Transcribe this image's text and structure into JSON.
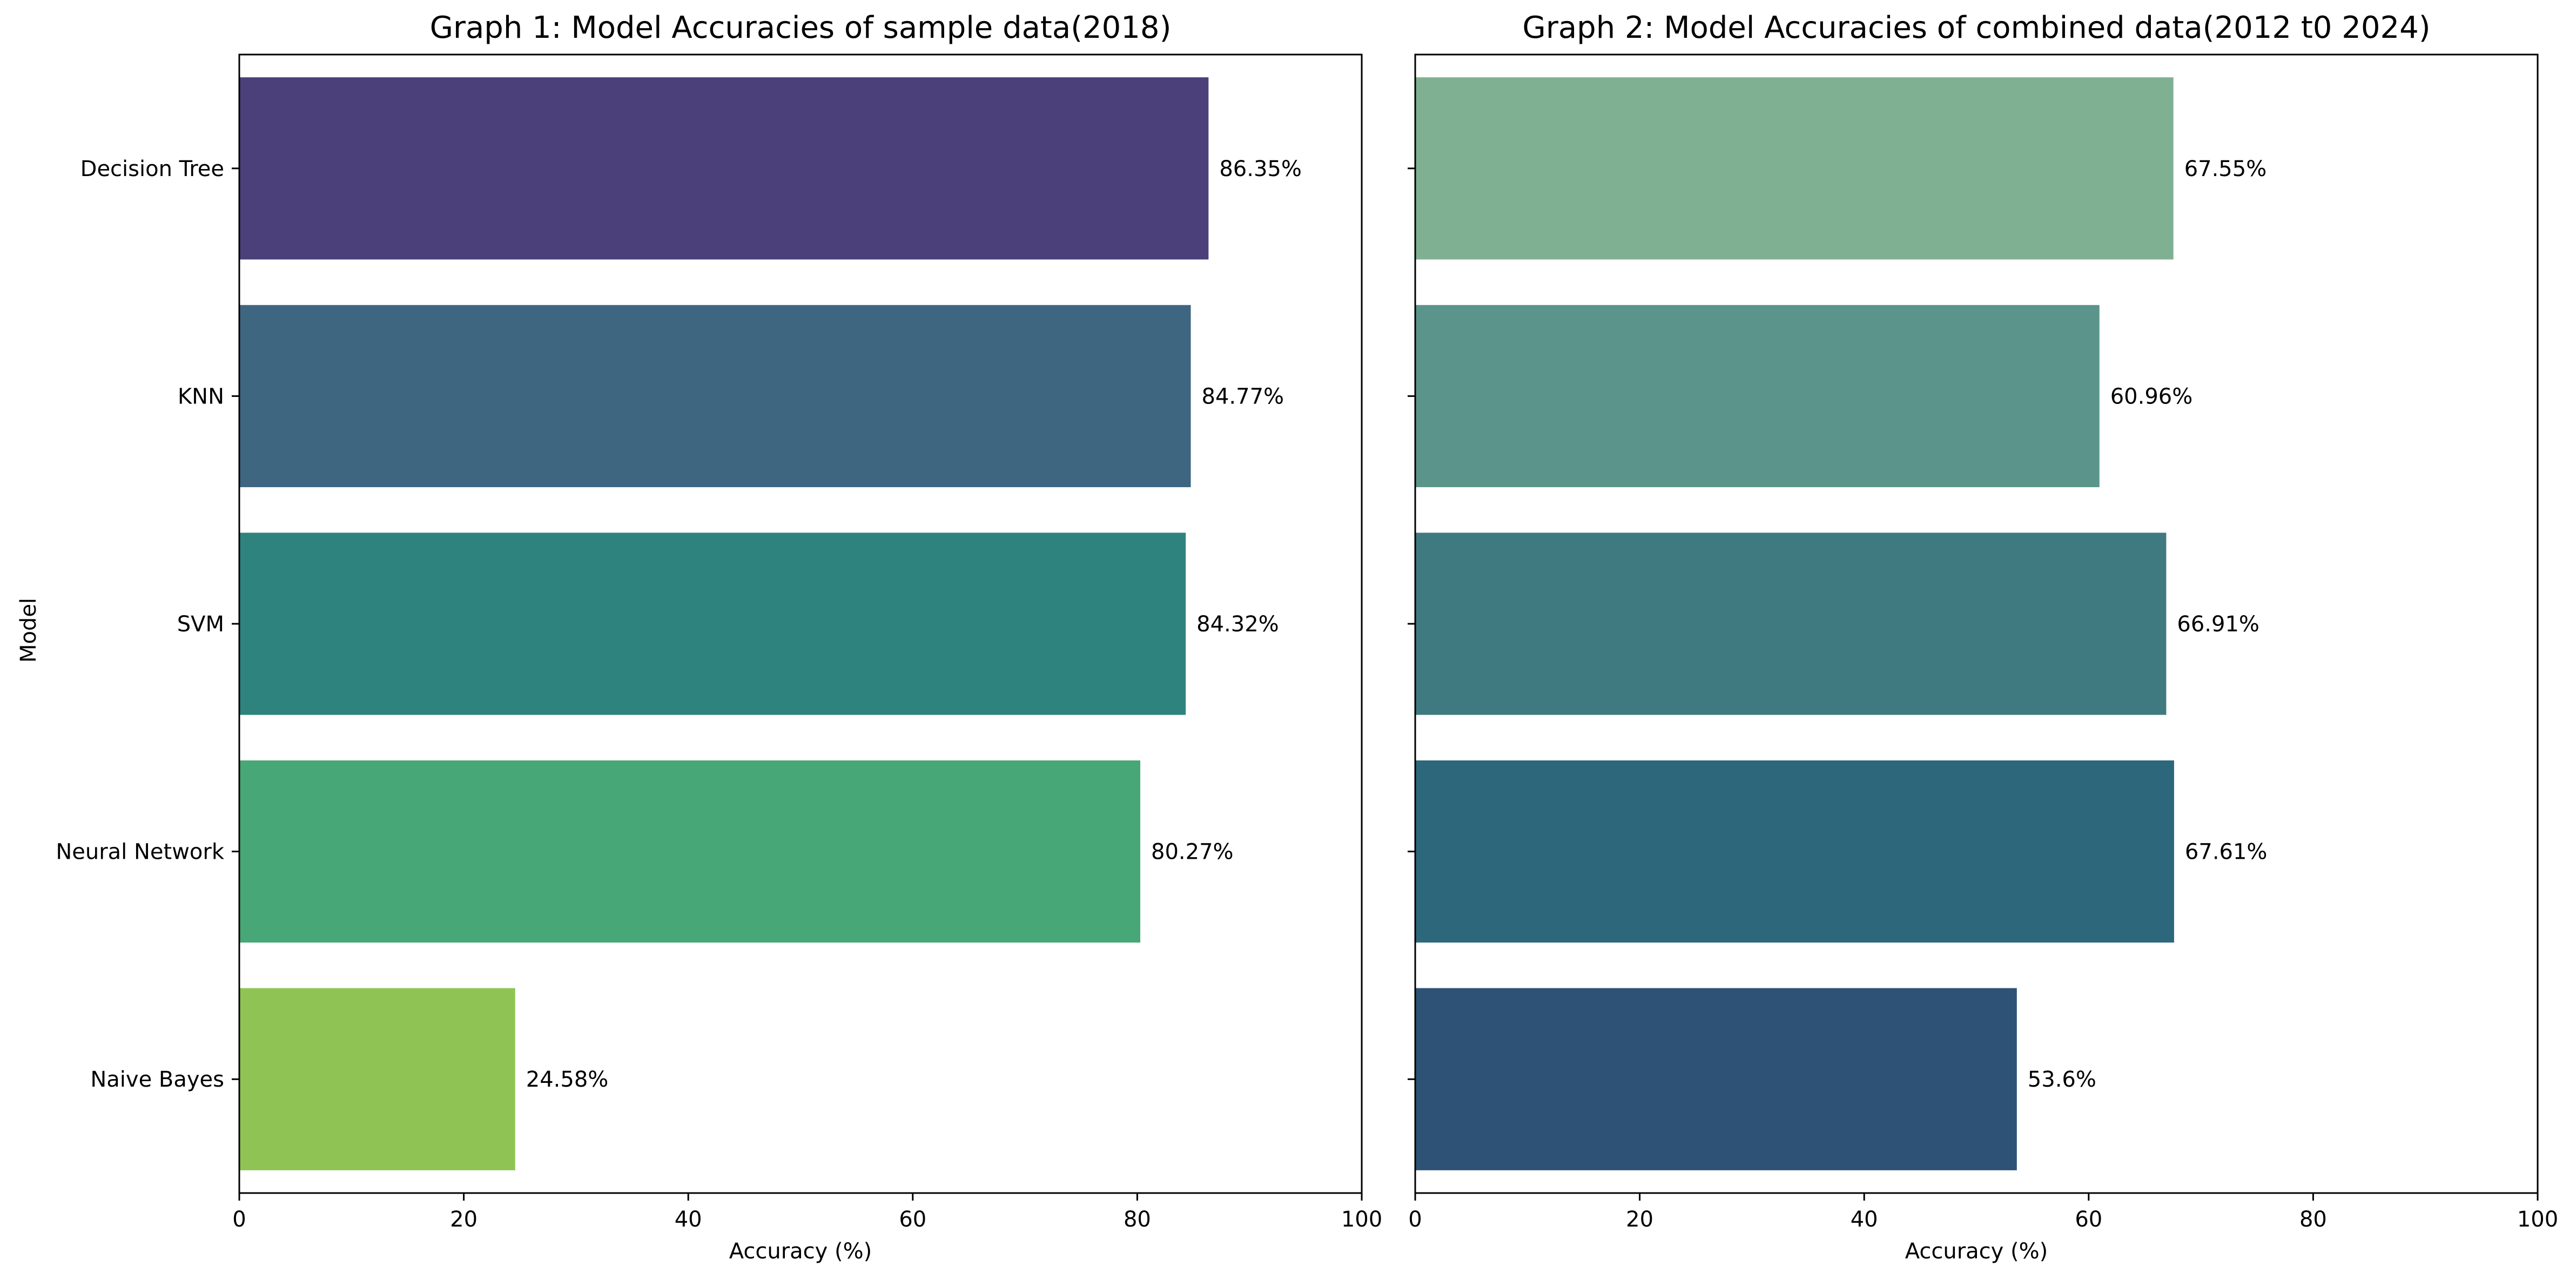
{
  "chart_data": [
    {
      "type": "bar",
      "orientation": "horizontal",
      "title": "Graph 1: Model Accuracies of sample data(2018)",
      "xlabel": "Accuracy (%)",
      "ylabel": "Model",
      "xlim": [
        0,
        100
      ],
      "xticks": [
        "0",
        "20",
        "40",
        "60",
        "80",
        "100"
      ],
      "categories": [
        "Decision Tree",
        "KNN",
        "SVM",
        "Neural Network",
        "Naive Bayes"
      ],
      "values": [
        86.35,
        84.77,
        84.32,
        80.27,
        24.58
      ],
      "value_labels": [
        "86.35%",
        "84.77%",
        "84.32%",
        "80.27%",
        "24.58%"
      ],
      "colors": [
        "#4b407a",
        "#3f6681",
        "#2e837f",
        "#47a776",
        "#8fc455"
      ],
      "show_category_labels": true,
      "grid": false
    },
    {
      "type": "bar",
      "orientation": "horizontal",
      "title": "Graph 2: Model Accuracies of combined data(2012 t0 2024)",
      "xlabel": "Accuracy (%)",
      "ylabel": "",
      "xlim": [
        0,
        100
      ],
      "xticks": [
        "0",
        "20",
        "40",
        "60",
        "80",
        "100"
      ],
      "categories": [
        "Decision Tree",
        "KNN",
        "SVM",
        "Neural Network",
        "Naive Bayes"
      ],
      "values": [
        67.55,
        60.96,
        66.91,
        67.61,
        53.6
      ],
      "value_labels": [
        "67.55%",
        "60.96%",
        "66.91%",
        "67.61%",
        "53.6%"
      ],
      "colors": [
        "#80b092",
        "#5b948a",
        "#3f7a80",
        "#2d677c",
        "#2e5276"
      ],
      "show_category_labels": false,
      "grid": false
    }
  ]
}
